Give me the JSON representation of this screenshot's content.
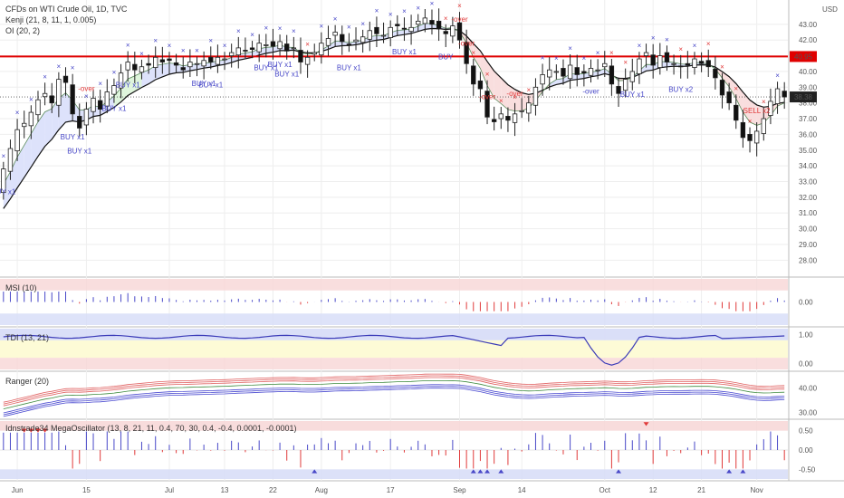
{
  "colors": {
    "up": "#333333",
    "down": "#111111",
    "grid": "#eeeeee",
    "axis": "#888888",
    "signal_buy": "#4848c8",
    "signal_sell": "#e03a3a",
    "hline": "#e00000",
    "kenji_fill_bull": "#dde2fb",
    "kenji_fill_bear": "#f9dede",
    "kenji_fill_green": "#dff5dc",
    "band_red": "#f7d6d6",
    "band_blue": "#d6dcf7",
    "band_yellow": "#fdfbd6"
  },
  "chart_data": [
    {
      "type": "candlestick",
      "title": "CFDs on WTI Crude Oil, 1D, TVC",
      "indicators": [
        "Kenji (21, 8, 11, 1, 0.005)",
        "OI (20, 2)"
      ],
      "currency": "USD",
      "ylim": [
        27.5,
        44.2
      ],
      "y_ticks": [
        "28.00",
        "29.00",
        "30.00",
        "31.00",
        "32.00",
        "33.00",
        "34.00",
        "35.00",
        "36.00",
        "37.00",
        "38.00",
        "39.00",
        "40.00",
        "41.00",
        "42.00",
        "43.00"
      ],
      "x_ticks": [
        {
          "label": "Jun",
          "i": 2
        },
        {
          "label": "15",
          "i": 12
        },
        {
          "label": "Jul",
          "i": 24
        },
        {
          "label": "13",
          "i": 32
        },
        {
          "label": "22",
          "i": 39
        },
        {
          "label": "Aug",
          "i": 46
        },
        {
          "label": "17",
          "i": 56
        },
        {
          "label": "Sep",
          "i": 66
        },
        {
          "label": "14",
          "i": 75
        },
        {
          "label": "Oct",
          "i": 87
        },
        {
          "label": "12",
          "i": 94
        },
        {
          "label": "21",
          "i": 101
        },
        {
          "label": "Nov",
          "i": 109
        }
      ],
      "hline": {
        "value": 40.95,
        "label": "40.95"
      },
      "last_price": {
        "value": 38.38,
        "label": "38.38"
      },
      "close": [
        33.8,
        35.1,
        36.3,
        36.7,
        37.4,
        38.2,
        38.6,
        38.0,
        39.5,
        39.3,
        37.3,
        36.4,
        37.6,
        38.3,
        37.6,
        38.7,
        39.1,
        39.9,
        40.6,
        40.1,
        40.3,
        40.4,
        40.9,
        40.6,
        40.7,
        40.4,
        40.1,
        40.6,
        40.5,
        40.7,
        40.6,
        40.9,
        40.8,
        41.2,
        41.5,
        41.3,
        41.4,
        41.8,
        41.7,
        41.6,
        41.9,
        41.3,
        41.5,
        40.6,
        40.9,
        41.2,
        41.8,
        42.1,
        42.5,
        41.9,
        41.7,
        42.0,
        42.2,
        42.6,
        42.4,
        42.3,
        42.8,
        42.9,
        42.7,
        42.8,
        43.2,
        43.4,
        43.0,
        42.7,
        42.4,
        42.9,
        42.0,
        40.5,
        39.2,
        38.9,
        37.1,
        36.8,
        37.3,
        36.9,
        37.3,
        37.5,
        38.0,
        39.0,
        39.8,
        40.1,
        40.0,
        39.7,
        40.4,
        39.8,
        39.9,
        40.2,
        40.1,
        40.5,
        39.2,
        38.6,
        39.5,
        40.0,
        40.8,
        41.2,
        40.4,
        41.0,
        40.6,
        40.5,
        40.3,
        40.4,
        40.8,
        40.5,
        40.3,
        39.6,
        38.5,
        38.0,
        36.9,
        35.8,
        35.6,
        36.2,
        37.0,
        38.1,
        38.9,
        38.38
      ],
      "series": [
        {
          "name": "Kenji"
        },
        {
          "name": "OI"
        }
      ],
      "signals": [
        {
          "i": 0,
          "text": "BUY x1",
          "kind": "buy"
        },
        {
          "i": 11,
          "text": "BUY x1",
          "kind": "buy"
        },
        {
          "i": 10,
          "text": "BUY x1",
          "kind": "buy"
        },
        {
          "i": 12,
          "text": "-over",
          "kind": "sell"
        },
        {
          "i": 16,
          "text": "BUY x1",
          "kind": "buy"
        },
        {
          "i": 18,
          "text": "BUY x1",
          "kind": "buy"
        },
        {
          "i": 29,
          "text": "BUY x1",
          "kind": "buy"
        },
        {
          "i": 30,
          "text": "BUY x1",
          "kind": "buy"
        },
        {
          "i": 38,
          "text": "BUY x1",
          "kind": "buy"
        },
        {
          "i": 40,
          "text": "BUY x1",
          "kind": "buy"
        },
        {
          "i": 41,
          "text": "BUY x1",
          "kind": "buy"
        },
        {
          "i": 50,
          "text": "BUY x1",
          "kind": "buy"
        },
        {
          "i": 58,
          "text": "BUY x1",
          "kind": "buy"
        },
        {
          "i": 64,
          "text": "BUY",
          "kind": "buy"
        },
        {
          "i": 66,
          "text": "-over",
          "kind": "sell"
        },
        {
          "i": 67,
          "text": "-over",
          "kind": "sell"
        },
        {
          "i": 70,
          "text": "-over",
          "kind": "sell"
        },
        {
          "i": 74,
          "text": "-over",
          "kind": "sell"
        },
        {
          "i": 85,
          "text": "-over",
          "kind": "buy"
        },
        {
          "i": 91,
          "text": "BUY x1",
          "kind": "buy"
        },
        {
          "i": 98,
          "text": "BUY x2",
          "kind": "buy"
        },
        {
          "i": 109,
          "text": "SELL x2",
          "kind": "sell"
        }
      ]
    },
    {
      "type": "bar",
      "title": "MSI (10)",
      "y_ticks": [
        "0.00"
      ],
      "ylim": [
        -1,
        1
      ]
    },
    {
      "type": "line",
      "title": "TDI (13, 21)",
      "y_ticks": [
        "1.00",
        "0.00"
      ],
      "ylim": [
        -0.2,
        1.2
      ]
    },
    {
      "type": "line",
      "title": "Ranger (20)",
      "y_ticks": [
        "40.00",
        "30.00"
      ],
      "ylim": [
        28,
        46
      ]
    },
    {
      "type": "bar",
      "title": "Idnstrade34 MegaOscillator (13, 8, 21, 11, 0.4, 70, 30, 0.4, -0.4, 0.0001, -0.0001)",
      "y_ticks": [
        "0.50",
        "0.00",
        "-0.50"
      ],
      "ylim": [
        -0.75,
        0.75
      ]
    }
  ]
}
